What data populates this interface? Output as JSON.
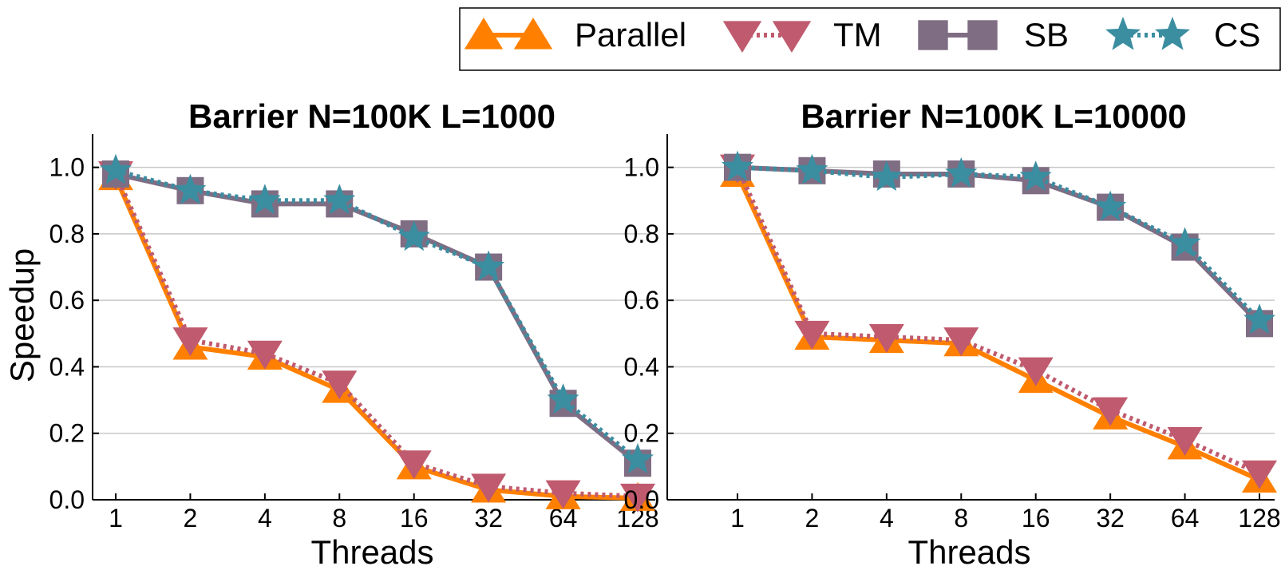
{
  "colors": {
    "Parallel": "#ff8000",
    "TM": "#c05a6e",
    "SB": "#7f6d84",
    "CS": "#3b8da0",
    "grid": "#c8c8c8"
  },
  "legend": {
    "placement": "top-right",
    "entries": [
      {
        "name": "Parallel",
        "marker": "triangle-up-icon",
        "linestyle": "solid"
      },
      {
        "name": "TM",
        "marker": "triangle-down-icon",
        "linestyle": "dotted"
      },
      {
        "name": "SB",
        "marker": "square-icon",
        "linestyle": "solid"
      },
      {
        "name": "CS",
        "marker": "star-icon",
        "linestyle": "dotted"
      }
    ]
  },
  "chart_data": [
    {
      "type": "line",
      "title": "Barrier N=100K L=1000",
      "xlabel": "Threads",
      "ylabel": "Speedup",
      "categories": [
        "1",
        "2",
        "4",
        "8",
        "16",
        "32",
        "64",
        "128"
      ],
      "ylim": [
        0,
        1.1
      ],
      "yticks": [
        "0.0",
        "0.2",
        "0.4",
        "0.6",
        "0.8",
        "1.0"
      ],
      "grid": true,
      "series": [
        {
          "name": "Parallel",
          "values": [
            0.97,
            0.46,
            0.43,
            0.33,
            0.1,
            0.03,
            0.01,
            0.005
          ]
        },
        {
          "name": "TM",
          "values": [
            0.98,
            0.48,
            0.44,
            0.35,
            0.11,
            0.04,
            0.02,
            0.01
          ]
        },
        {
          "name": "SB",
          "values": [
            0.98,
            0.93,
            0.89,
            0.89,
            0.8,
            0.7,
            0.29,
            0.11
          ]
        },
        {
          "name": "CS",
          "values": [
            0.99,
            0.93,
            0.9,
            0.9,
            0.79,
            0.7,
            0.3,
            0.12
          ]
        }
      ]
    },
    {
      "type": "line",
      "title": "Barrier N=100K L=10000",
      "xlabel": "Threads",
      "ylabel": "",
      "categories": [
        "1",
        "2",
        "4",
        "8",
        "16",
        "32",
        "64",
        "128"
      ],
      "ylim": [
        0,
        1.1
      ],
      "yticks": [
        "0.0",
        "0.2",
        "0.4",
        "0.6",
        "0.8",
        "1.0"
      ],
      "grid": true,
      "series": [
        {
          "name": "Parallel",
          "values": [
            0.98,
            0.49,
            0.48,
            0.47,
            0.36,
            0.25,
            0.16,
            0.06
          ]
        },
        {
          "name": "TM",
          "values": [
            1.0,
            0.5,
            0.49,
            0.48,
            0.39,
            0.27,
            0.18,
            0.08
          ]
        },
        {
          "name": "SB",
          "values": [
            1.0,
            0.99,
            0.98,
            0.98,
            0.96,
            0.88,
            0.76,
            0.53
          ]
        },
        {
          "name": "CS",
          "values": [
            1.0,
            0.99,
            0.97,
            0.98,
            0.97,
            0.88,
            0.77,
            0.54
          ]
        }
      ]
    }
  ]
}
